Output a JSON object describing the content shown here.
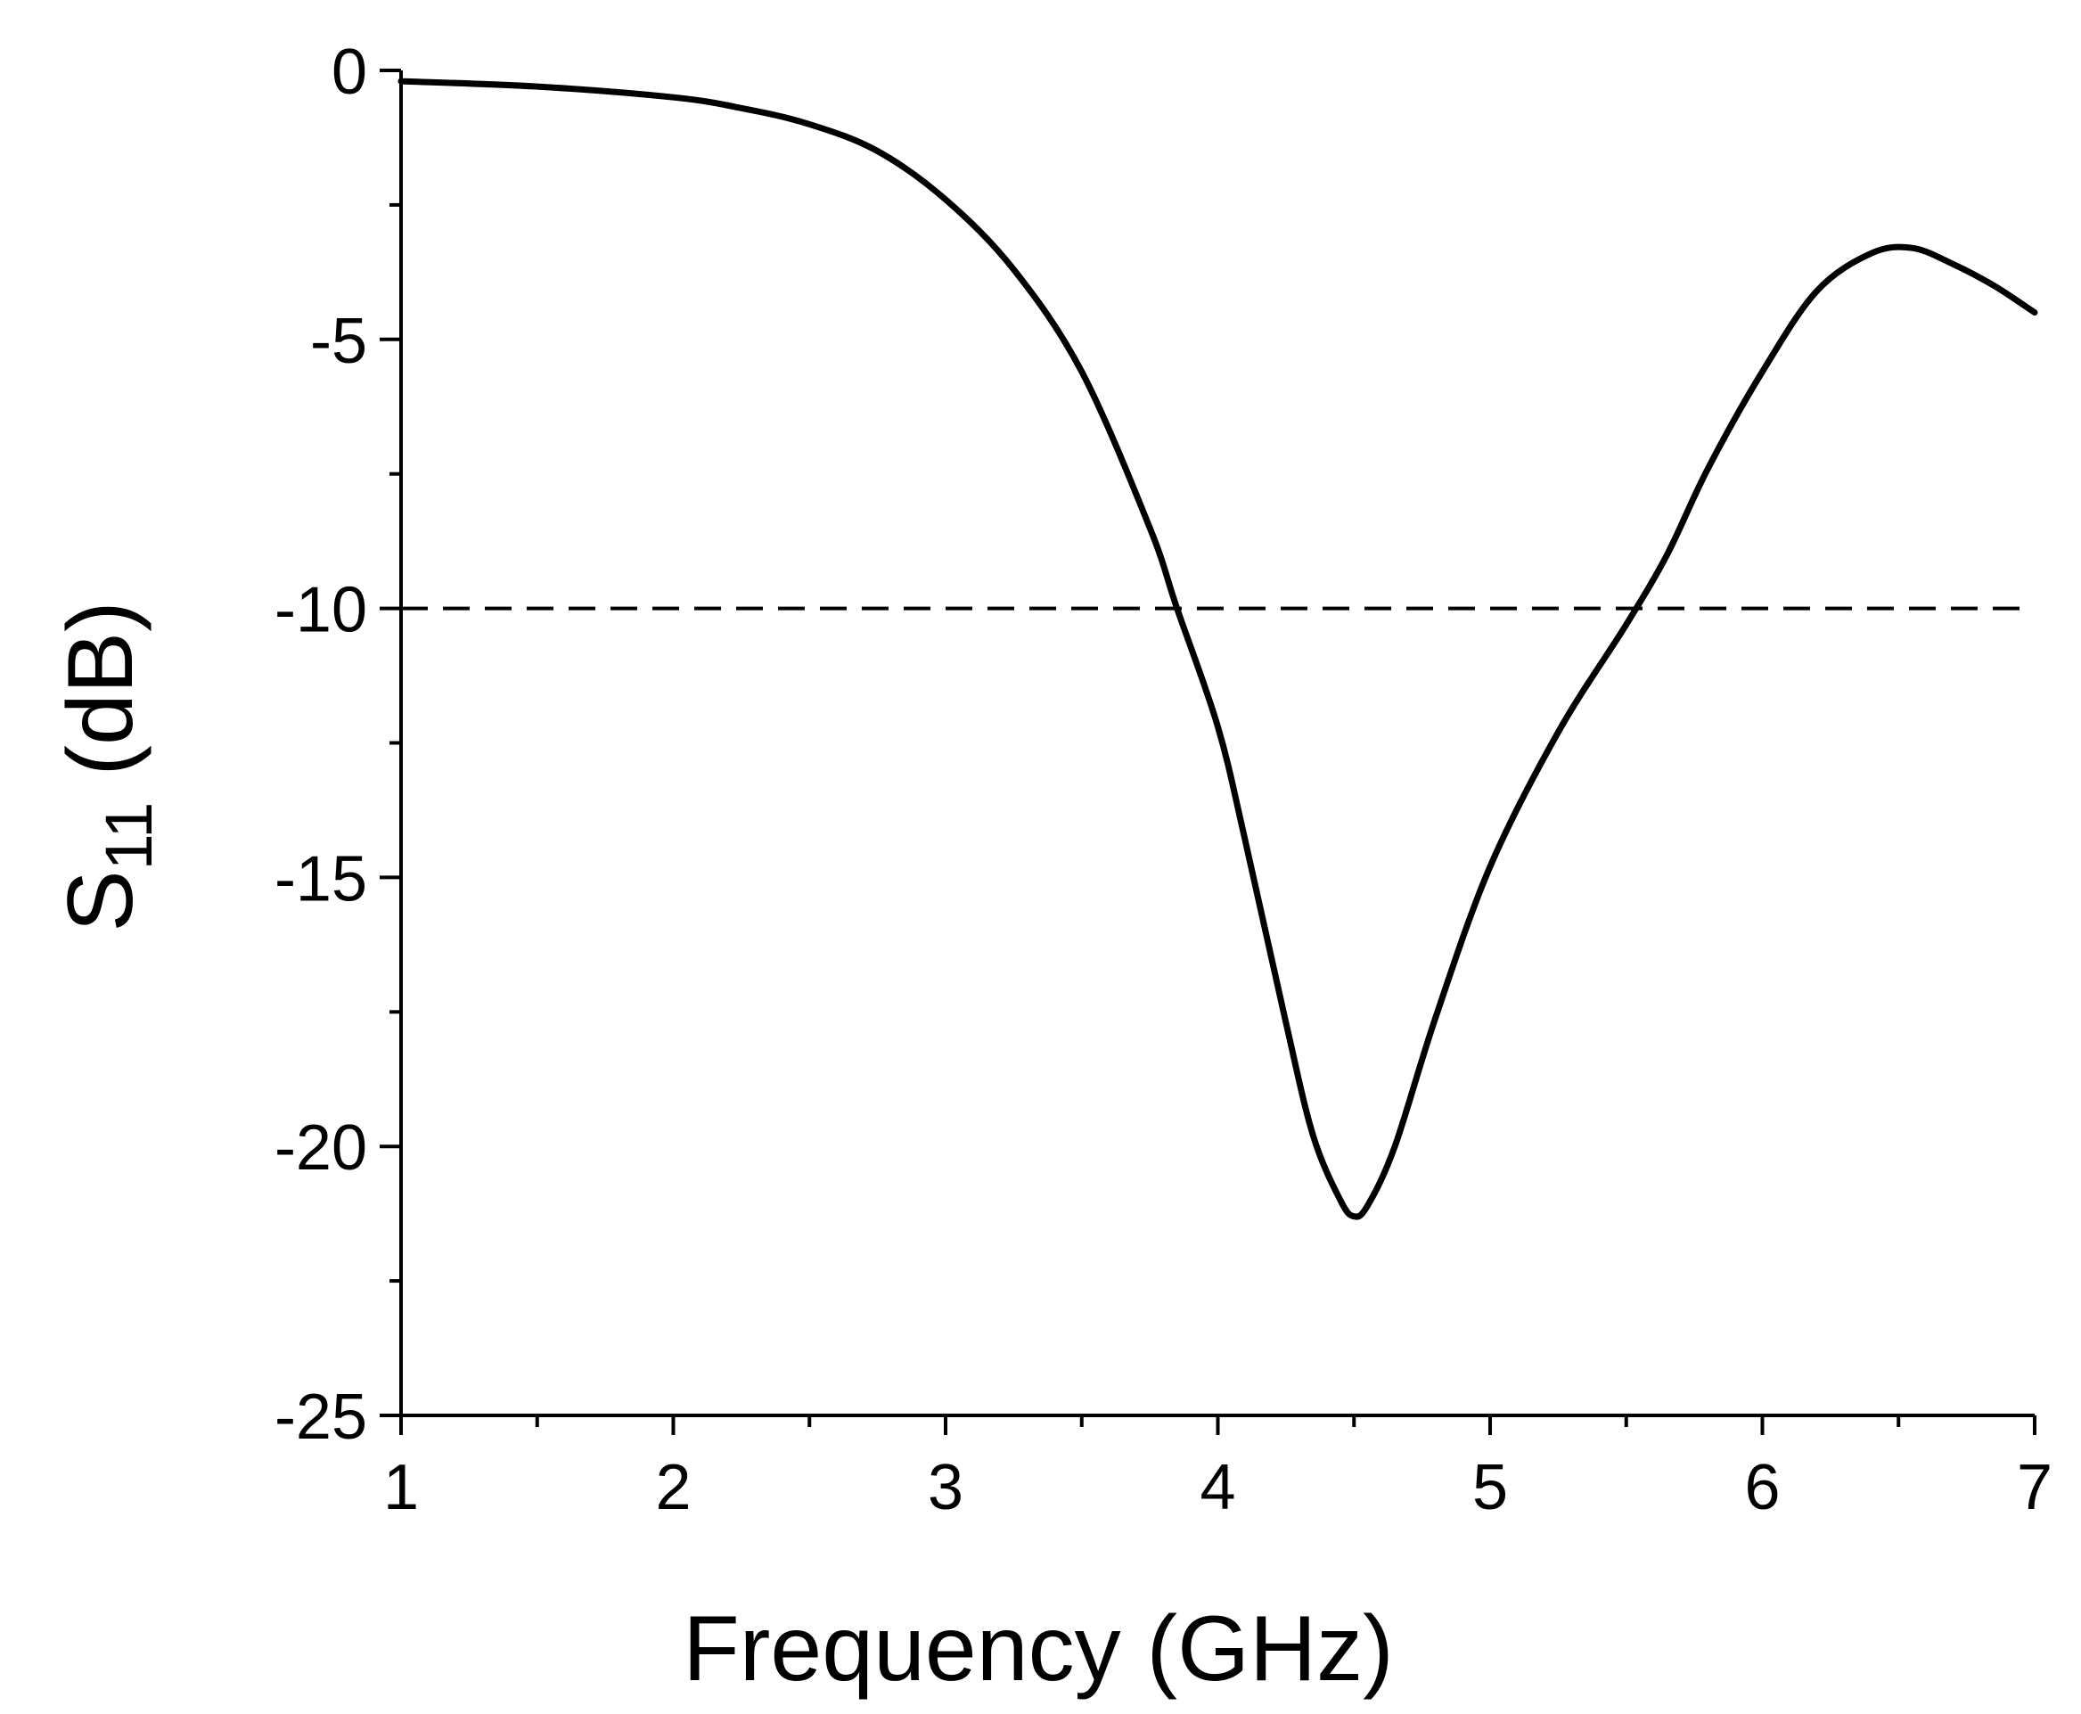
{
  "chart_data": {
    "type": "line",
    "xlabel": "Frequency (GHz)",
    "ylabel": {
      "base": "S",
      "subscript": "11",
      "suffix": " (dB)"
    },
    "xlim": [
      1,
      7
    ],
    "ylim": [
      -25,
      0
    ],
    "x_ticks": [
      1,
      2,
      3,
      4,
      5,
      6,
      7
    ],
    "x_tick_labels": [
      "1",
      "2",
      "3",
      "4",
      "5",
      "6",
      "7"
    ],
    "y_ticks": [
      0,
      -5,
      -10,
      -15,
      -20,
      -25
    ],
    "y_tick_labels": [
      "0",
      "-5",
      "-10",
      "-15",
      "-20",
      "-25"
    ],
    "x_minor_step": 0.5,
    "y_minor_step": 2.5,
    "grid": false,
    "colors": {
      "line": "#000000",
      "axis": "#000000",
      "background": "#ffffff"
    },
    "series": [
      {
        "style": "solid",
        "x": [
          1.0,
          1.5,
          2.0,
          2.25,
          2.5,
          2.75,
          3.0,
          3.25,
          3.5,
          3.75,
          3.85,
          4.0,
          4.1,
          4.25,
          4.35,
          4.45,
          4.5,
          4.55,
          4.65,
          4.8,
          5.0,
          5.25,
          5.5,
          5.65,
          5.8,
          6.0,
          6.2,
          6.4,
          6.55,
          6.7,
          6.85,
          7.0
        ],
        "y": [
          -0.2,
          -0.3,
          -0.5,
          -0.7,
          -1.0,
          -1.5,
          -2.4,
          -3.7,
          -5.6,
          -8.5,
          -10.0,
          -12.2,
          -14.3,
          -17.7,
          -19.8,
          -21.0,
          -21.3,
          -21.1,
          -20.0,
          -17.6,
          -14.8,
          -12.3,
          -10.3,
          -9.0,
          -7.4,
          -5.6,
          -4.1,
          -3.4,
          -3.3,
          -3.6,
          -4.0,
          -4.5
        ]
      },
      {
        "style": "dashed",
        "x": [
          1.0,
          7.0
        ],
        "y": [
          -10.0,
          -10.0
        ]
      }
    ]
  }
}
